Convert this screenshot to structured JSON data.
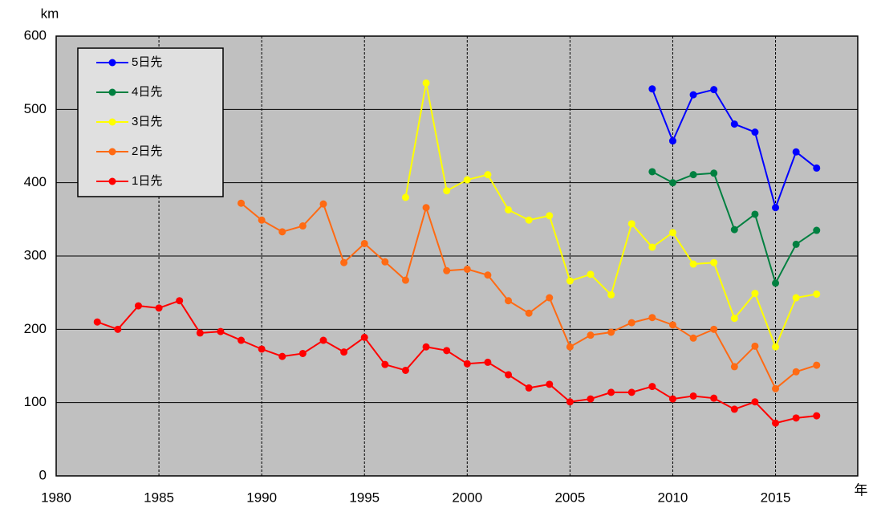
{
  "chart_data": {
    "type": "line",
    "y_label": "km",
    "x_label": "年",
    "x": [
      1982,
      1983,
      1984,
      1985,
      1986,
      1987,
      1988,
      1989,
      1990,
      1991,
      1992,
      1993,
      1994,
      1995,
      1996,
      1997,
      1998,
      1999,
      2000,
      2001,
      2002,
      2003,
      2004,
      2005,
      2006,
      2007,
      2008,
      2009,
      2010,
      2011,
      2012,
      2013,
      2014,
      2015,
      2016,
      2017
    ],
    "series": [
      {
        "name": "5日先",
        "color": "#0000ff",
        "values": [
          null,
          null,
          null,
          null,
          null,
          null,
          null,
          null,
          null,
          null,
          null,
          null,
          null,
          null,
          null,
          null,
          null,
          null,
          null,
          null,
          null,
          null,
          null,
          null,
          null,
          null,
          null,
          528,
          457,
          520,
          527,
          480,
          469,
          366,
          442,
          420
        ]
      },
      {
        "name": "4日先",
        "color": "#008040",
        "values": [
          null,
          null,
          null,
          null,
          null,
          null,
          null,
          null,
          null,
          null,
          null,
          null,
          null,
          null,
          null,
          null,
          null,
          null,
          null,
          null,
          null,
          null,
          null,
          null,
          null,
          null,
          null,
          415,
          400,
          411,
          413,
          336,
          357,
          263,
          316,
          335
        ]
      },
      {
        "name": "3日先",
        "color": "#ffff00",
        "values": [
          null,
          null,
          null,
          null,
          null,
          null,
          null,
          null,
          null,
          null,
          null,
          null,
          null,
          null,
          null,
          380,
          536,
          389,
          404,
          411,
          363,
          349,
          355,
          266,
          275,
          247,
          344,
          312,
          332,
          289,
          291,
          215,
          249,
          176,
          243,
          248
        ]
      },
      {
        "name": "2日先",
        "color": "#ff6a13",
        "values": [
          null,
          null,
          null,
          null,
          null,
          null,
          null,
          372,
          349,
          333,
          341,
          371,
          291,
          317,
          292,
          267,
          366,
          280,
          282,
          274,
          239,
          222,
          243,
          176,
          192,
          196,
          209,
          216,
          206,
          188,
          200,
          149,
          177,
          119,
          142,
          151
        ]
      },
      {
        "name": "1日先",
        "color": "#ff0000",
        "values": [
          210,
          200,
          232,
          229,
          239,
          195,
          197,
          185,
          173,
          163,
          167,
          185,
          169,
          189,
          152,
          144,
          176,
          171,
          153,
          155,
          138,
          120,
          125,
          101,
          105,
          114,
          114,
          122,
          105,
          109,
          106,
          91,
          101,
          72,
          79,
          82
        ]
      }
    ],
    "xlim": [
      1980,
      2019
    ],
    "xticks": [
      1980,
      1985,
      1990,
      1995,
      2000,
      2005,
      2010,
      2015
    ],
    "ylim": [
      0,
      600
    ],
    "yticks": [
      0,
      100,
      200,
      300,
      400,
      500,
      600
    ],
    "grid": true,
    "legend": "upper-left",
    "background": "#c0c0c0"
  }
}
